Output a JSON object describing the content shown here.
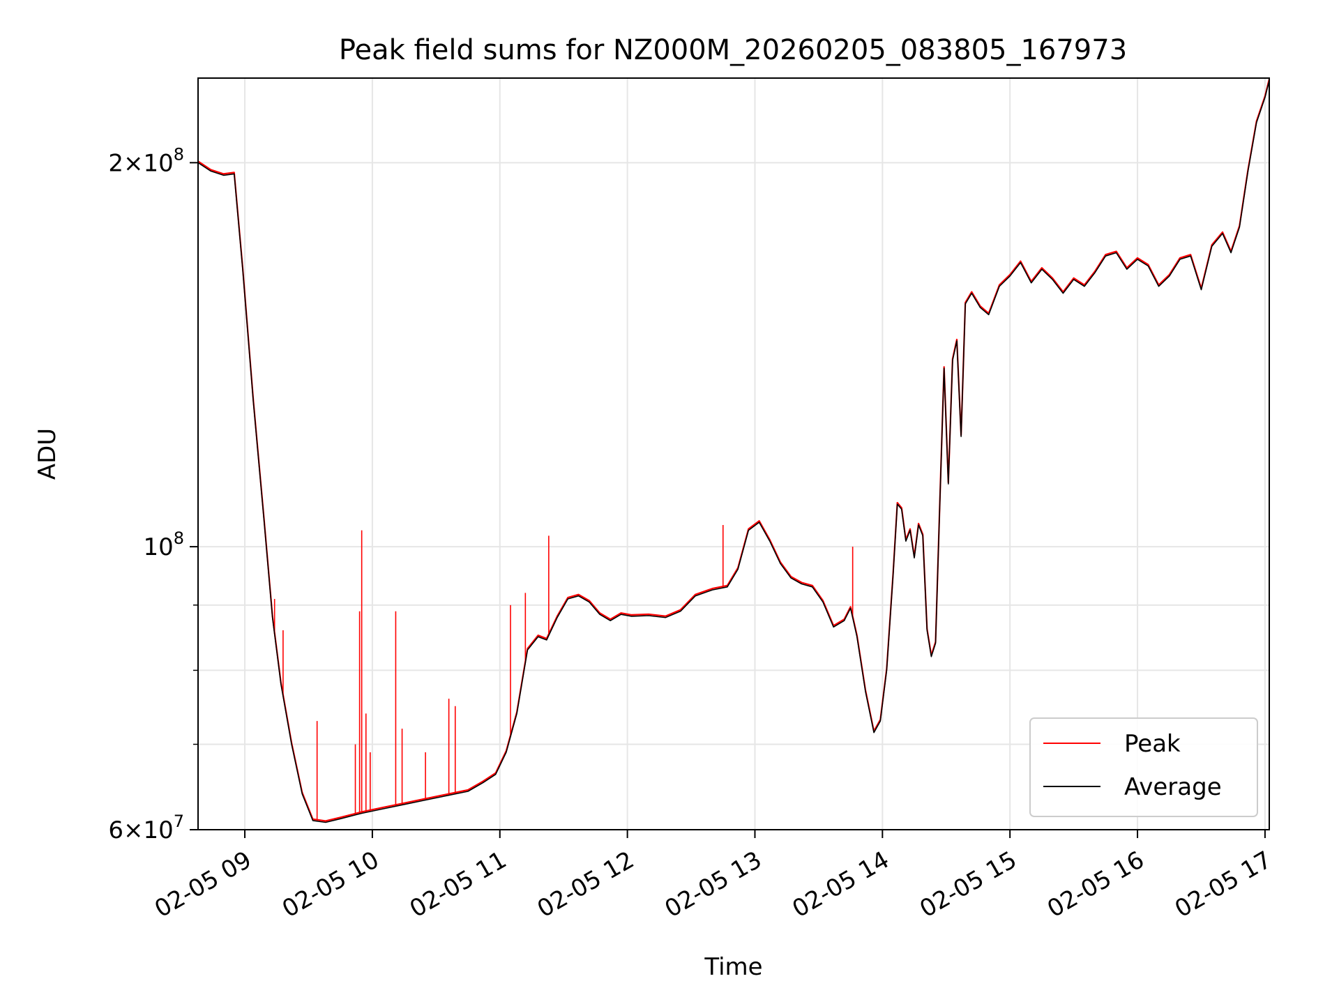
{
  "chart_data": {
    "type": "line",
    "title": "Peak field sums for NZ000M_20260205_083805_167973",
    "xlabel": "Time",
    "ylabel": "ADU",
    "y_scale": "log",
    "ylim": [
      60000000,
      233000000
    ],
    "xlim": [
      "2026-02-05 08:38",
      "2026-02-05 17:02"
    ],
    "grid": true,
    "legend_position": "lower-right",
    "x_ticks": [
      {
        "value": "2026-02-05 09:00",
        "label": "02-05 09"
      },
      {
        "value": "2026-02-05 10:00",
        "label": "02-05 10"
      },
      {
        "value": "2026-02-05 11:00",
        "label": "02-05 11"
      },
      {
        "value": "2026-02-05 12:00",
        "label": "02-05 12"
      },
      {
        "value": "2026-02-05 13:00",
        "label": "02-05 13"
      },
      {
        "value": "2026-02-05 14:00",
        "label": "02-05 14"
      },
      {
        "value": "2026-02-05 15:00",
        "label": "02-05 15"
      },
      {
        "value": "2026-02-05 16:00",
        "label": "02-05 16"
      },
      {
        "value": "2026-02-05 17:00",
        "label": "02-05 17"
      }
    ],
    "y_major_ticks": [
      {
        "value": 60000000,
        "base": "6",
        "exp": "7"
      },
      {
        "value": 100000000,
        "base": "",
        "exp": "8"
      },
      {
        "value": 200000000,
        "base": "2",
        "exp": "8"
      }
    ],
    "y_minor_ticks": [
      70000000,
      80000000,
      90000000
    ],
    "series": [
      {
        "name": "Average",
        "color": "#000000",
        "points": [
          [
            "2026-02-05 08:38",
            200000000
          ],
          [
            "2026-02-05 08:44",
            197000000
          ],
          [
            "2026-02-05 08:50",
            195500000
          ],
          [
            "2026-02-05 08:55",
            196000000
          ],
          [
            "2026-02-05 08:59",
            165000000
          ],
          [
            "2026-02-05 09:04",
            130000000
          ],
          [
            "2026-02-05 09:09",
            105000000
          ],
          [
            "2026-02-05 09:13",
            88000000
          ],
          [
            "2026-02-05 09:17",
            78000000
          ],
          [
            "2026-02-05 09:22",
            70000000
          ],
          [
            "2026-02-05 09:27",
            64000000
          ],
          [
            "2026-02-05 09:32",
            61000000
          ],
          [
            "2026-02-05 09:38",
            60800000
          ],
          [
            "2026-02-05 09:45",
            61200000
          ],
          [
            "2026-02-05 09:55",
            61800000
          ],
          [
            "2026-02-05 10:05",
            62300000
          ],
          [
            "2026-02-05 10:15",
            62800000
          ],
          [
            "2026-02-05 10:25",
            63300000
          ],
          [
            "2026-02-05 10:35",
            63800000
          ],
          [
            "2026-02-05 10:45",
            64300000
          ],
          [
            "2026-02-05 10:52",
            65300000
          ],
          [
            "2026-02-05 10:58",
            66300000
          ],
          [
            "2026-02-05 11:03",
            69000000
          ],
          [
            "2026-02-05 11:08",
            74000000
          ],
          [
            "2026-02-05 11:13",
            83000000
          ],
          [
            "2026-02-05 11:18",
            85000000
          ],
          [
            "2026-02-05 11:22",
            84500000
          ],
          [
            "2026-02-05 11:27",
            88000000
          ],
          [
            "2026-02-05 11:32",
            91000000
          ],
          [
            "2026-02-05 11:37",
            91500000
          ],
          [
            "2026-02-05 11:42",
            90500000
          ],
          [
            "2026-02-05 11:47",
            88500000
          ],
          [
            "2026-02-05 11:52",
            87500000
          ],
          [
            "2026-02-05 11:57",
            88500000
          ],
          [
            "2026-02-05 12:02",
            88200000
          ],
          [
            "2026-02-05 12:10",
            88300000
          ],
          [
            "2026-02-05 12:18",
            88000000
          ],
          [
            "2026-02-05 12:25",
            89000000
          ],
          [
            "2026-02-05 12:32",
            91500000
          ],
          [
            "2026-02-05 12:40",
            92500000
          ],
          [
            "2026-02-05 12:47",
            93000000
          ],
          [
            "2026-02-05 12:52",
            96000000
          ],
          [
            "2026-02-05 12:57",
            103000000
          ],
          [
            "2026-02-05 13:02",
            104500000
          ],
          [
            "2026-02-05 13:07",
            101000000
          ],
          [
            "2026-02-05 13:12",
            97000000
          ],
          [
            "2026-02-05 13:17",
            94500000
          ],
          [
            "2026-02-05 13:22",
            93500000
          ],
          [
            "2026-02-05 13:27",
            93000000
          ],
          [
            "2026-02-05 13:32",
            90500000
          ],
          [
            "2026-02-05 13:37",
            86500000
          ],
          [
            "2026-02-05 13:42",
            87500000
          ],
          [
            "2026-02-05 13:45",
            89500000
          ],
          [
            "2026-02-05 13:48",
            85000000
          ],
          [
            "2026-02-05 13:52",
            77000000
          ],
          [
            "2026-02-05 13:56",
            71500000
          ],
          [
            "2026-02-05 13:59",
            73000000
          ],
          [
            "2026-02-05 14:02",
            80000000
          ],
          [
            "2026-02-05 14:05",
            95000000
          ],
          [
            "2026-02-05 14:07",
            108000000
          ],
          [
            "2026-02-05 14:09",
            107000000
          ],
          [
            "2026-02-05 14:11",
            101000000
          ],
          [
            "2026-02-05 14:13",
            103000000
          ],
          [
            "2026-02-05 14:15",
            98000000
          ],
          [
            "2026-02-05 14:17",
            104000000
          ],
          [
            "2026-02-05 14:19",
            102000000
          ],
          [
            "2026-02-05 14:21",
            86000000
          ],
          [
            "2026-02-05 14:23",
            82000000
          ],
          [
            "2026-02-05 14:25",
            84000000
          ],
          [
            "2026-02-05 14:27",
            108000000
          ],
          [
            "2026-02-05 14:29",
            138000000
          ],
          [
            "2026-02-05 14:31",
            112000000
          ],
          [
            "2026-02-05 14:33",
            140000000
          ],
          [
            "2026-02-05 14:35",
            145000000
          ],
          [
            "2026-02-05 14:37",
            122000000
          ],
          [
            "2026-02-05 14:39",
            155000000
          ],
          [
            "2026-02-05 14:42",
            158000000
          ],
          [
            "2026-02-05 14:46",
            154000000
          ],
          [
            "2026-02-05 14:50",
            152000000
          ],
          [
            "2026-02-05 14:55",
            160000000
          ],
          [
            "2026-02-05 15:00",
            163000000
          ],
          [
            "2026-02-05 15:05",
            167000000
          ],
          [
            "2026-02-05 15:10",
            161000000
          ],
          [
            "2026-02-05 15:15",
            165000000
          ],
          [
            "2026-02-05 15:20",
            162000000
          ],
          [
            "2026-02-05 15:25",
            158000000
          ],
          [
            "2026-02-05 15:30",
            162000000
          ],
          [
            "2026-02-05 15:35",
            160000000
          ],
          [
            "2026-02-05 15:40",
            164000000
          ],
          [
            "2026-02-05 15:45",
            169000000
          ],
          [
            "2026-02-05 15:50",
            170000000
          ],
          [
            "2026-02-05 15:55",
            165000000
          ],
          [
            "2026-02-05 16:00",
            168000000
          ],
          [
            "2026-02-05 16:05",
            166000000
          ],
          [
            "2026-02-05 16:10",
            160000000
          ],
          [
            "2026-02-05 16:15",
            163000000
          ],
          [
            "2026-02-05 16:20",
            168000000
          ],
          [
            "2026-02-05 16:25",
            169000000
          ],
          [
            "2026-02-05 16:30",
            159000000
          ],
          [
            "2026-02-05 16:35",
            172000000
          ],
          [
            "2026-02-05 16:40",
            176000000
          ],
          [
            "2026-02-05 16:44",
            170000000
          ],
          [
            "2026-02-05 16:48",
            178000000
          ],
          [
            "2026-02-05 16:52",
            197000000
          ],
          [
            "2026-02-05 16:56",
            215000000
          ],
          [
            "2026-02-05 17:00",
            225000000
          ],
          [
            "2026-02-05 17:02",
            232000000
          ]
        ]
      },
      {
        "name": "Peak",
        "color": "#ff0000",
        "spikes": [
          [
            "2026-02-05 09:14",
            91000000
          ],
          [
            "2026-02-05 09:18",
            86000000
          ],
          [
            "2026-02-05 09:34",
            73000000
          ],
          [
            "2026-02-05 09:52",
            70000000
          ],
          [
            "2026-02-05 09:54",
            89000000
          ],
          [
            "2026-02-05 09:55",
            103000000
          ],
          [
            "2026-02-05 09:57",
            74000000
          ],
          [
            "2026-02-05 09:59",
            69000000
          ],
          [
            "2026-02-05 10:11",
            89000000
          ],
          [
            "2026-02-05 10:14",
            72000000
          ],
          [
            "2026-02-05 10:25",
            69000000
          ],
          [
            "2026-02-05 10:36",
            76000000
          ],
          [
            "2026-02-05 10:39",
            75000000
          ],
          [
            "2026-02-05 11:05",
            90000000
          ],
          [
            "2026-02-05 11:12",
            92000000
          ],
          [
            "2026-02-05 11:23",
            102000000
          ],
          [
            "2026-02-05 12:45",
            104000000
          ],
          [
            "2026-02-05 13:46",
            100000000
          ]
        ]
      }
    ]
  }
}
